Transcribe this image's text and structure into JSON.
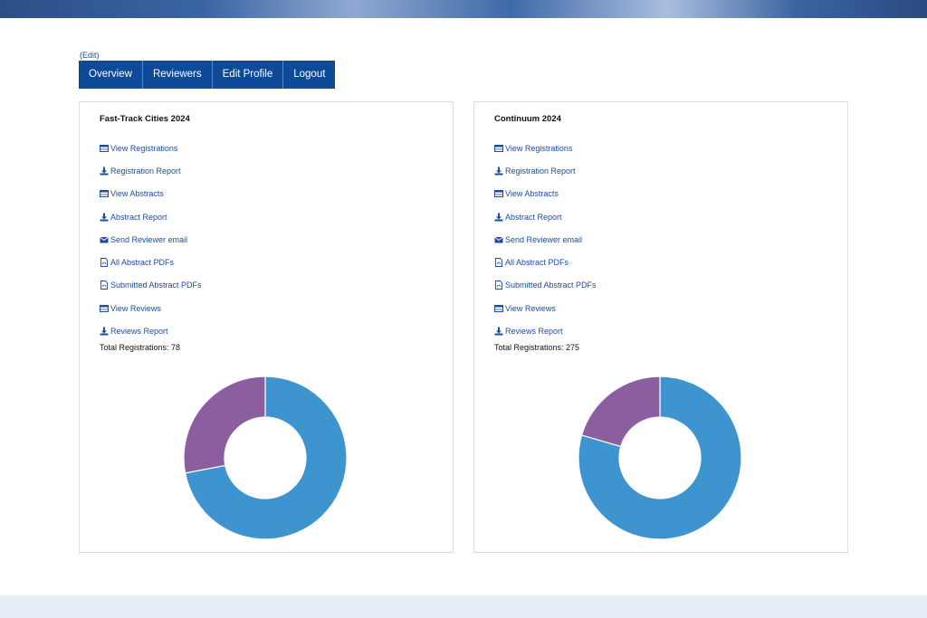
{
  "edit_label": "(Edit)",
  "nav": {
    "overview": "Overview",
    "reviewers": "Reviewers",
    "edit_profile": "Edit Profile",
    "logout": "Logout"
  },
  "colors": {
    "nav_bg": "#0d4b9a",
    "link": "#1c4c9c",
    "donut_blue": "#3d94cf",
    "donut_purple": "#8b5e9f"
  },
  "panels": [
    {
      "title": "Fast-Track Cities 2024",
      "links": [
        {
          "icon": "table-icon",
          "label": "View Registrations"
        },
        {
          "icon": "download-icon",
          "label": "Registration Report"
        },
        {
          "icon": "table-icon",
          "label": "View Abstracts"
        },
        {
          "icon": "download-icon",
          "label": "Abstract Report"
        },
        {
          "icon": "envelope-icon",
          "label": "Send Reviewer email"
        },
        {
          "icon": "pdf-file-icon",
          "label": "All Abstract PDFs"
        },
        {
          "icon": "pdf-file-icon",
          "label": "Submitted Abstract PDFs"
        },
        {
          "icon": "table-icon",
          "label": "View Reviews"
        },
        {
          "icon": "download-icon",
          "label": "Reviews Report"
        }
      ],
      "total_label": "Total Registrations: 78"
    },
    {
      "title": "Continuum 2024",
      "links": [
        {
          "icon": "table-icon",
          "label": "View Registrations"
        },
        {
          "icon": "download-icon",
          "label": "Registration Report"
        },
        {
          "icon": "table-icon",
          "label": "View Abstracts"
        },
        {
          "icon": "download-icon",
          "label": "Abstract Report"
        },
        {
          "icon": "envelope-icon",
          "label": "Send Reviewer email"
        },
        {
          "icon": "pdf-file-icon",
          "label": "All Abstract PDFs"
        },
        {
          "icon": "pdf-file-icon",
          "label": "Submitted Abstract PDFs"
        },
        {
          "icon": "table-icon",
          "label": "View Reviews"
        },
        {
          "icon": "download-icon",
          "label": "Reviews Report"
        }
      ],
      "total_label": "Total Registrations: 275"
    }
  ],
  "chart_data": [
    {
      "type": "pie",
      "subtype": "donut",
      "slices": [
        {
          "color": "#3d94cf",
          "fraction": 0.72
        },
        {
          "color": "#8b5e9f",
          "fraction": 0.28
        }
      ]
    },
    {
      "type": "pie",
      "subtype": "donut",
      "slices": [
        {
          "color": "#3d94cf",
          "fraction": 0.795
        },
        {
          "color": "#8b5e9f",
          "fraction": 0.205
        }
      ]
    }
  ]
}
